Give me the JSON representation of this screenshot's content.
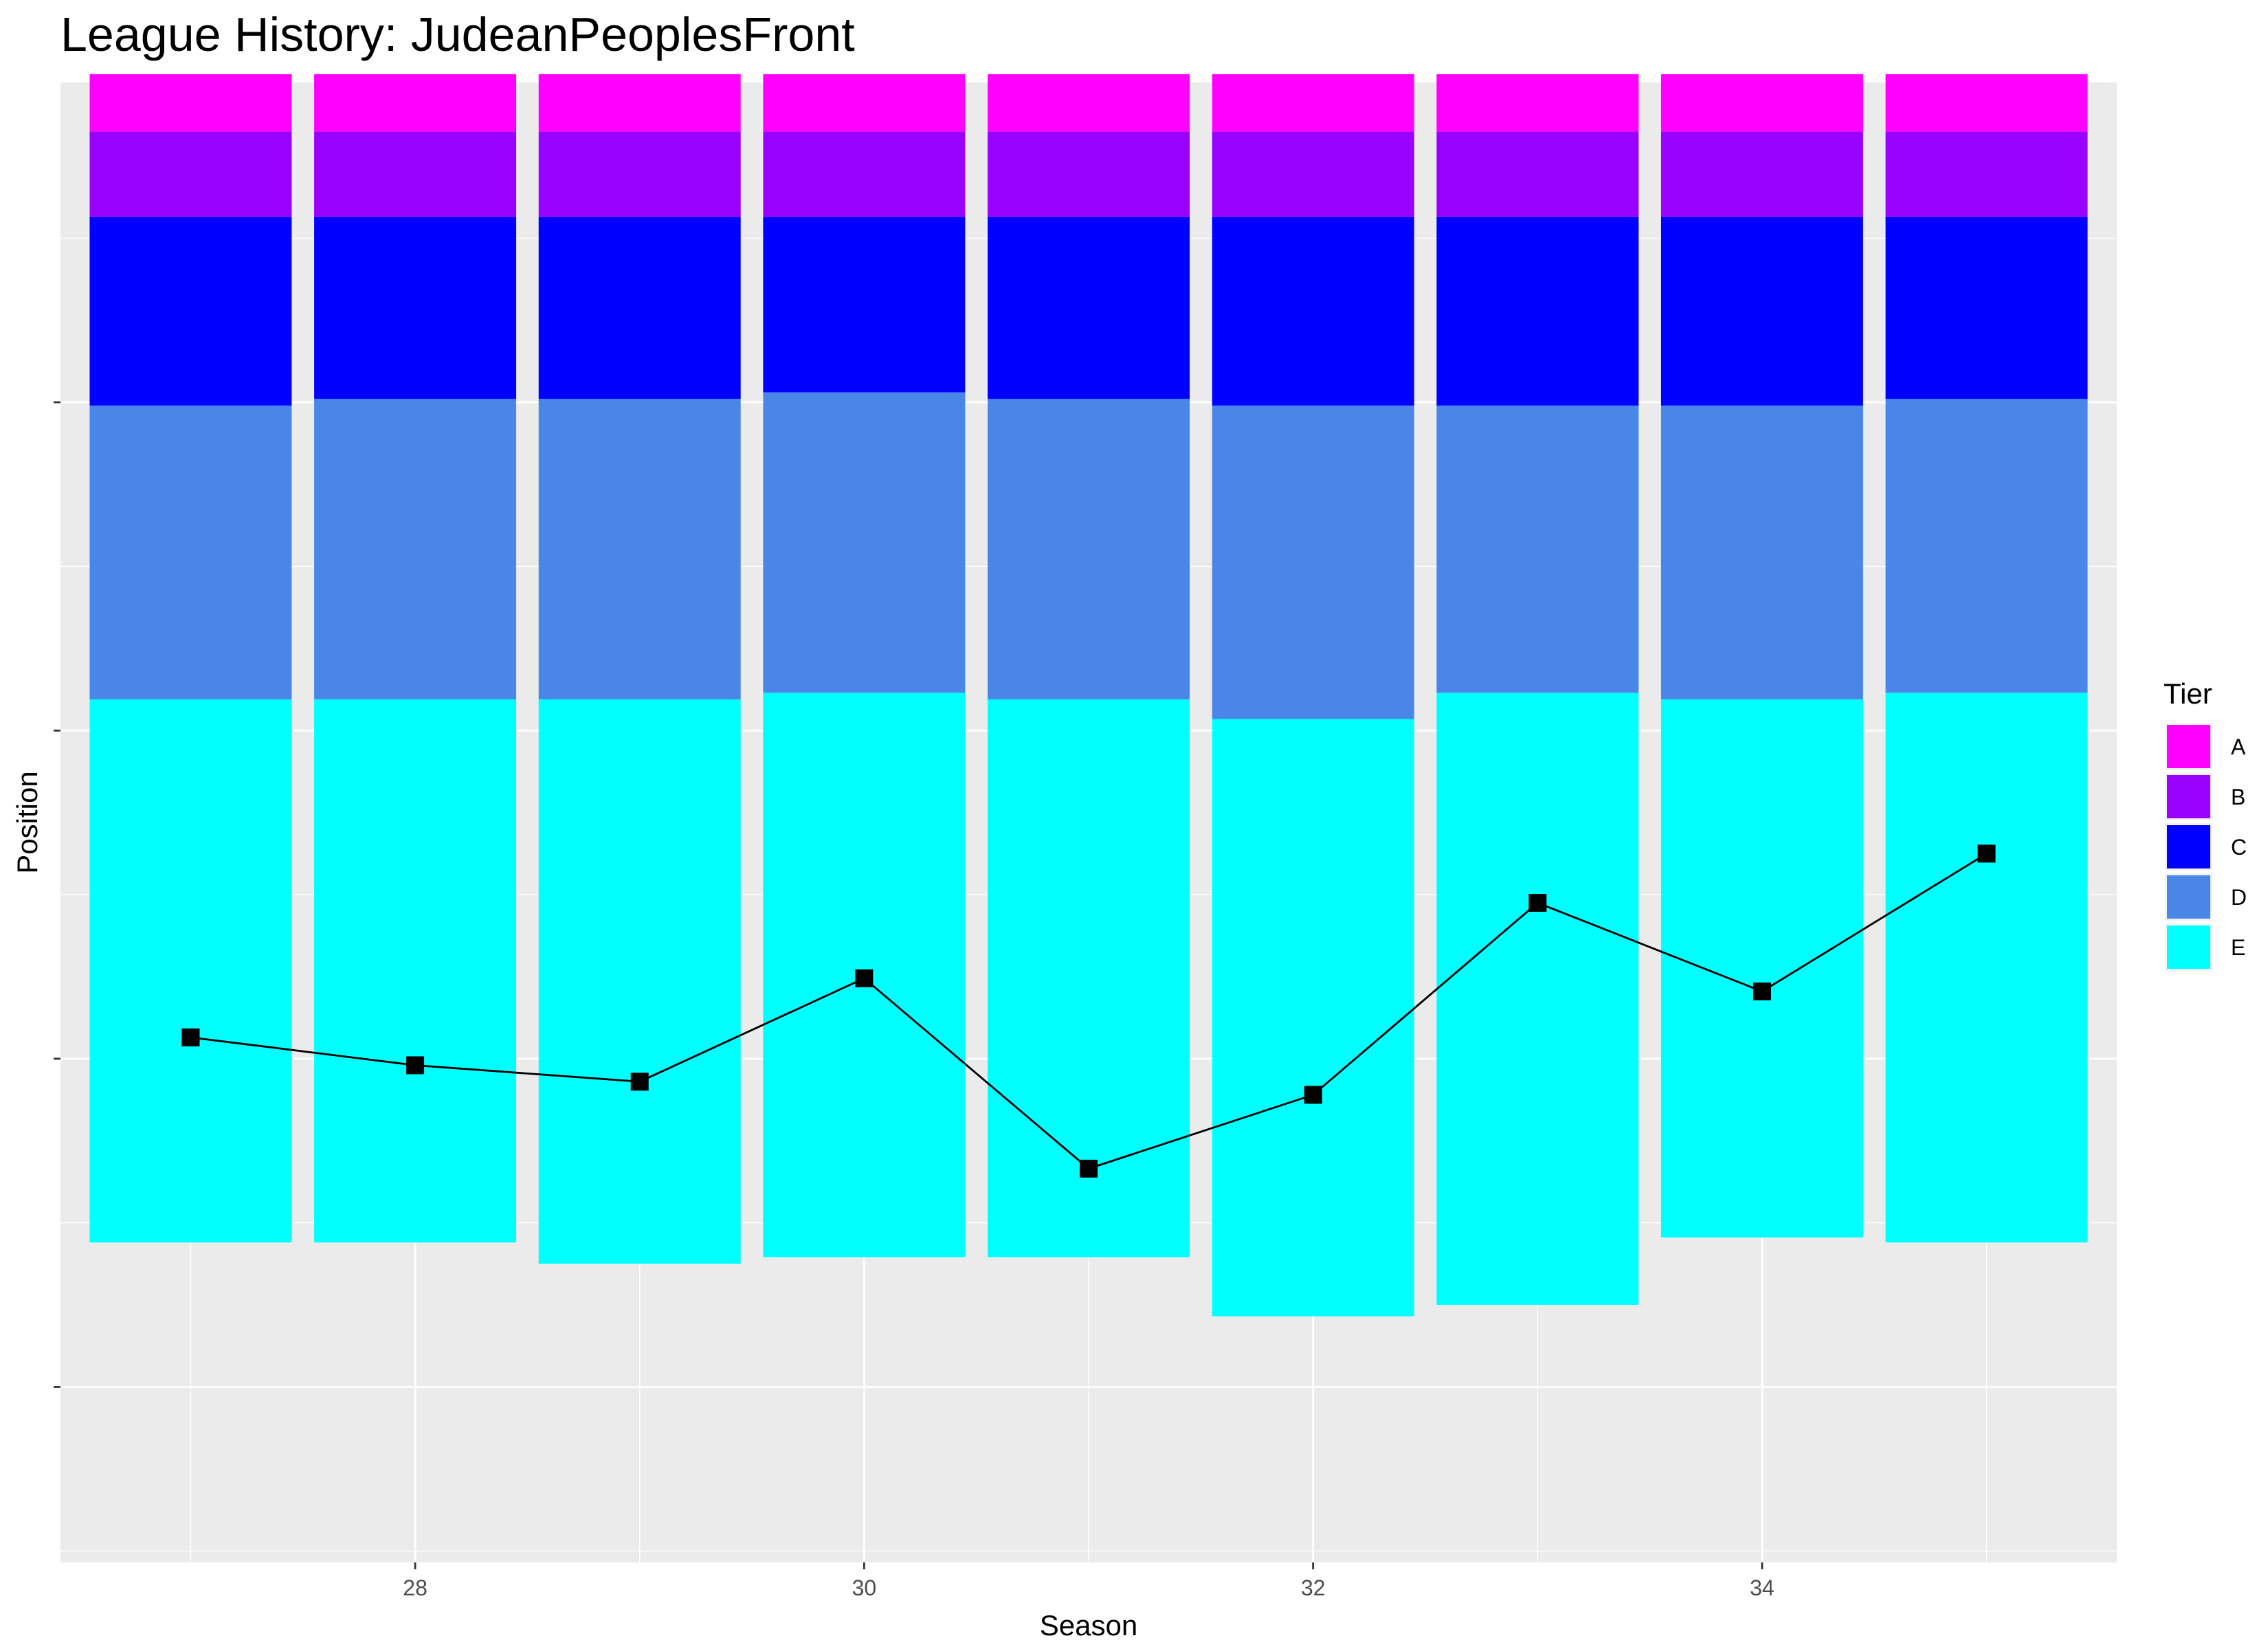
{
  "chart_data": {
    "type": "bar",
    "title": "League History: JudeanPeoplesFront",
    "xlabel": "Season",
    "ylabel": "Position",
    "x_ticks": [
      28,
      30,
      32,
      34
    ],
    "xlim": [
      26.42,
      35.58
    ],
    "ylim": [
      90.7,
      0.5
    ],
    "y_reversed": true,
    "grid": true,
    "legend": {
      "title": "Tier",
      "placement": "right"
    },
    "seasons": [
      27,
      28,
      29,
      30,
      31,
      32,
      33,
      34,
      35
    ],
    "tiers": [
      {
        "name": "A",
        "color": "#FF00FF",
        "ends": [
          3.5,
          3.5,
          3.5,
          3.5,
          3.5,
          3.5,
          3.5,
          3.5,
          3.5
        ]
      },
      {
        "name": "B",
        "color": "#9900FF",
        "ends": [
          8.7,
          8.7,
          8.7,
          8.7,
          8.7,
          8.7,
          8.7,
          8.7,
          8.7
        ]
      },
      {
        "name": "C",
        "color": "#0000FF",
        "ends": [
          20.2,
          19.8,
          19.8,
          19.4,
          19.8,
          20.2,
          20.2,
          20.2,
          19.8
        ]
      },
      {
        "name": "D",
        "color": "#4A86E8",
        "ends": [
          38.1,
          38.1,
          38.1,
          37.7,
          38.1,
          39.3,
          37.7,
          38.1,
          37.7
        ]
      },
      {
        "name": "E",
        "color": "#00FFFF",
        "ends": [
          71.2,
          71.2,
          72.5,
          72.1,
          72.1,
          75.7,
          75.0,
          70.9,
          71.2
        ]
      }
    ],
    "series": [
      {
        "values": [
          58.7,
          60.4,
          61.4,
          55.1,
          66.7,
          62.2,
          50.5,
          55.9,
          47.5
        ]
      }
    ]
  }
}
